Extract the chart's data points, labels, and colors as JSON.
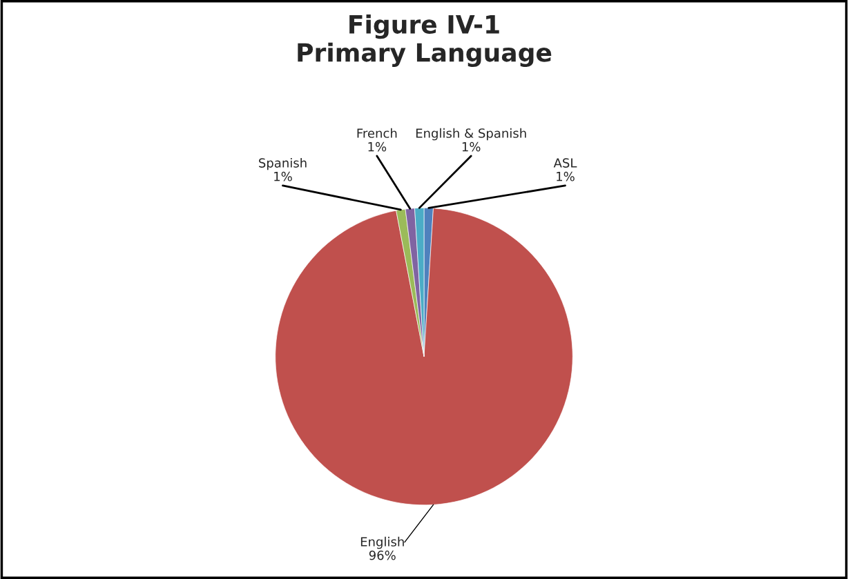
{
  "chart_data": {
    "type": "pie",
    "title": "Figure IV-1\nPrimary Language",
    "categories": [
      "ASL",
      "English",
      "Spanish",
      "French",
      "English & Spanish"
    ],
    "values": [
      1,
      96,
      1,
      1,
      1
    ],
    "colors": [
      "#4f81bd",
      "#c0504d",
      "#9bbb59",
      "#8064a2",
      "#4bacc6"
    ],
    "value_labels": [
      "1%",
      "96%",
      "1%",
      "1%",
      "1%"
    ]
  }
}
